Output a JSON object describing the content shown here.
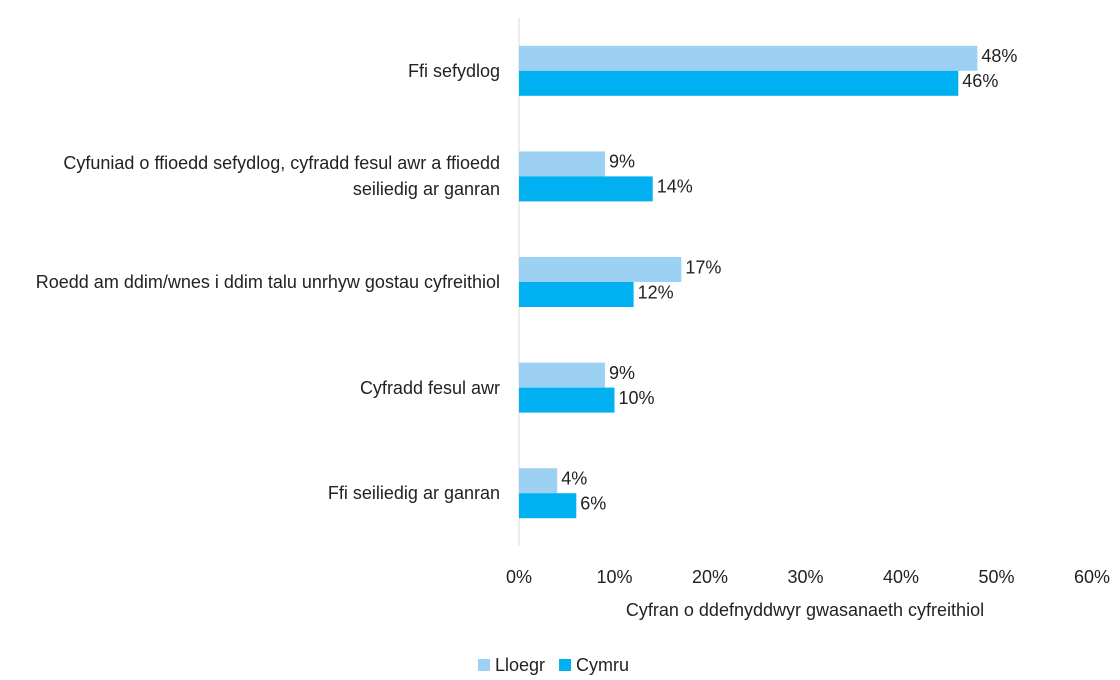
{
  "chart_data": {
    "type": "hbar",
    "categories": [
      "Ffi sefydlog",
      "Cyfuniad o ffioedd sefydlog, cyfradd fesul awr a ffioedd seiliedig ar ganran",
      "Roedd am ddim/wnes i ddim talu unrhyw gostau cyfreithiol",
      "Cyfradd fesul awr",
      "Ffi seiliedig ar ganran"
    ],
    "series": [
      {
        "name": "Lloegr",
        "color": "#9dd1f3",
        "values": [
          48,
          9,
          17,
          9,
          4
        ],
        "value_labels": [
          "48%",
          "9%",
          "17%",
          "9%",
          "4%"
        ]
      },
      {
        "name": "Cymru",
        "color": "#00b0f0",
        "values": [
          46,
          14,
          12,
          10,
          6
        ],
        "value_labels": [
          "46%",
          "14%",
          "12%",
          "10%",
          "6%"
        ]
      }
    ],
    "xlabel": "Cyfran o ddefnyddwyr gwasanaeth cyfreithiol",
    "xlim": [
      0,
      60
    ],
    "xticks": [
      {
        "value": 0,
        "label": "0%"
      },
      {
        "value": 10,
        "label": "10%"
      },
      {
        "value": 20,
        "label": "20%"
      },
      {
        "value": 30,
        "label": "30%"
      },
      {
        "value": 40,
        "label": "40%"
      },
      {
        "value": 50,
        "label": "50%"
      },
      {
        "value": 60,
        "label": "60%"
      }
    ],
    "grid": false,
    "legend": "bottom"
  }
}
